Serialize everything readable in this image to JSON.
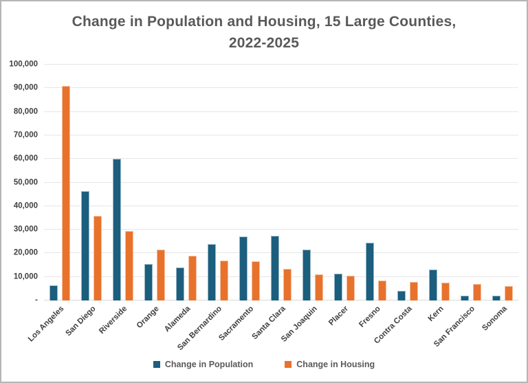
{
  "chart_data": {
    "type": "bar",
    "title": "Change in Population and Housing, 15 Large Counties, 2022-2025",
    "title_line1": "Change in Population and Housing, 15 Large Counties,",
    "title_line2": "2022-2025",
    "categories": [
      "Los Angeles",
      "San Diego",
      "Riverside",
      "Orange",
      "Alameda",
      "San Bernardino",
      "Sacramento",
      "Santa Clara",
      "San Joaquin",
      "Placer",
      "Fresno",
      "Contra Costa",
      "Kern",
      "San Francisco",
      "Sonoma"
    ],
    "series": [
      {
        "name": "Change in Population",
        "color": "#1B5E7E",
        "values": [
          6500,
          46500,
          60000,
          15500,
          14000,
          24000,
          27000,
          27500,
          21500,
          11500,
          24500,
          4000,
          13000,
          2000,
          2000
        ]
      },
      {
        "name": "Change in Housing",
        "color": "#E8722C",
        "values": [
          91000,
          36000,
          29500,
          21500,
          19000,
          17000,
          16500,
          13500,
          11000,
          10500,
          8500,
          8000,
          7500,
          7000,
          6000
        ]
      }
    ],
    "xlabel": "",
    "ylabel": "",
    "ylim": [
      0,
      100000
    ],
    "ytick_step": 10000,
    "ytick_labels_top_to_bottom": [
      "100,000",
      "90,000",
      "80,000",
      "70,000",
      "60,000",
      "50,000",
      "40,000",
      "30,000",
      "20,000",
      "10,000",
      "-"
    ],
    "grid": true,
    "legend_position": "bottom",
    "bar_orientation": "vertical"
  },
  "colors": {
    "population_bar": "#1B5E7E",
    "housing_bar": "#E8722C",
    "title_text": "#595959",
    "axis_text": "#404040",
    "gridline": "#E6E6E6",
    "figure_border": "#B5B5B5",
    "background": "#FFFFFF"
  }
}
